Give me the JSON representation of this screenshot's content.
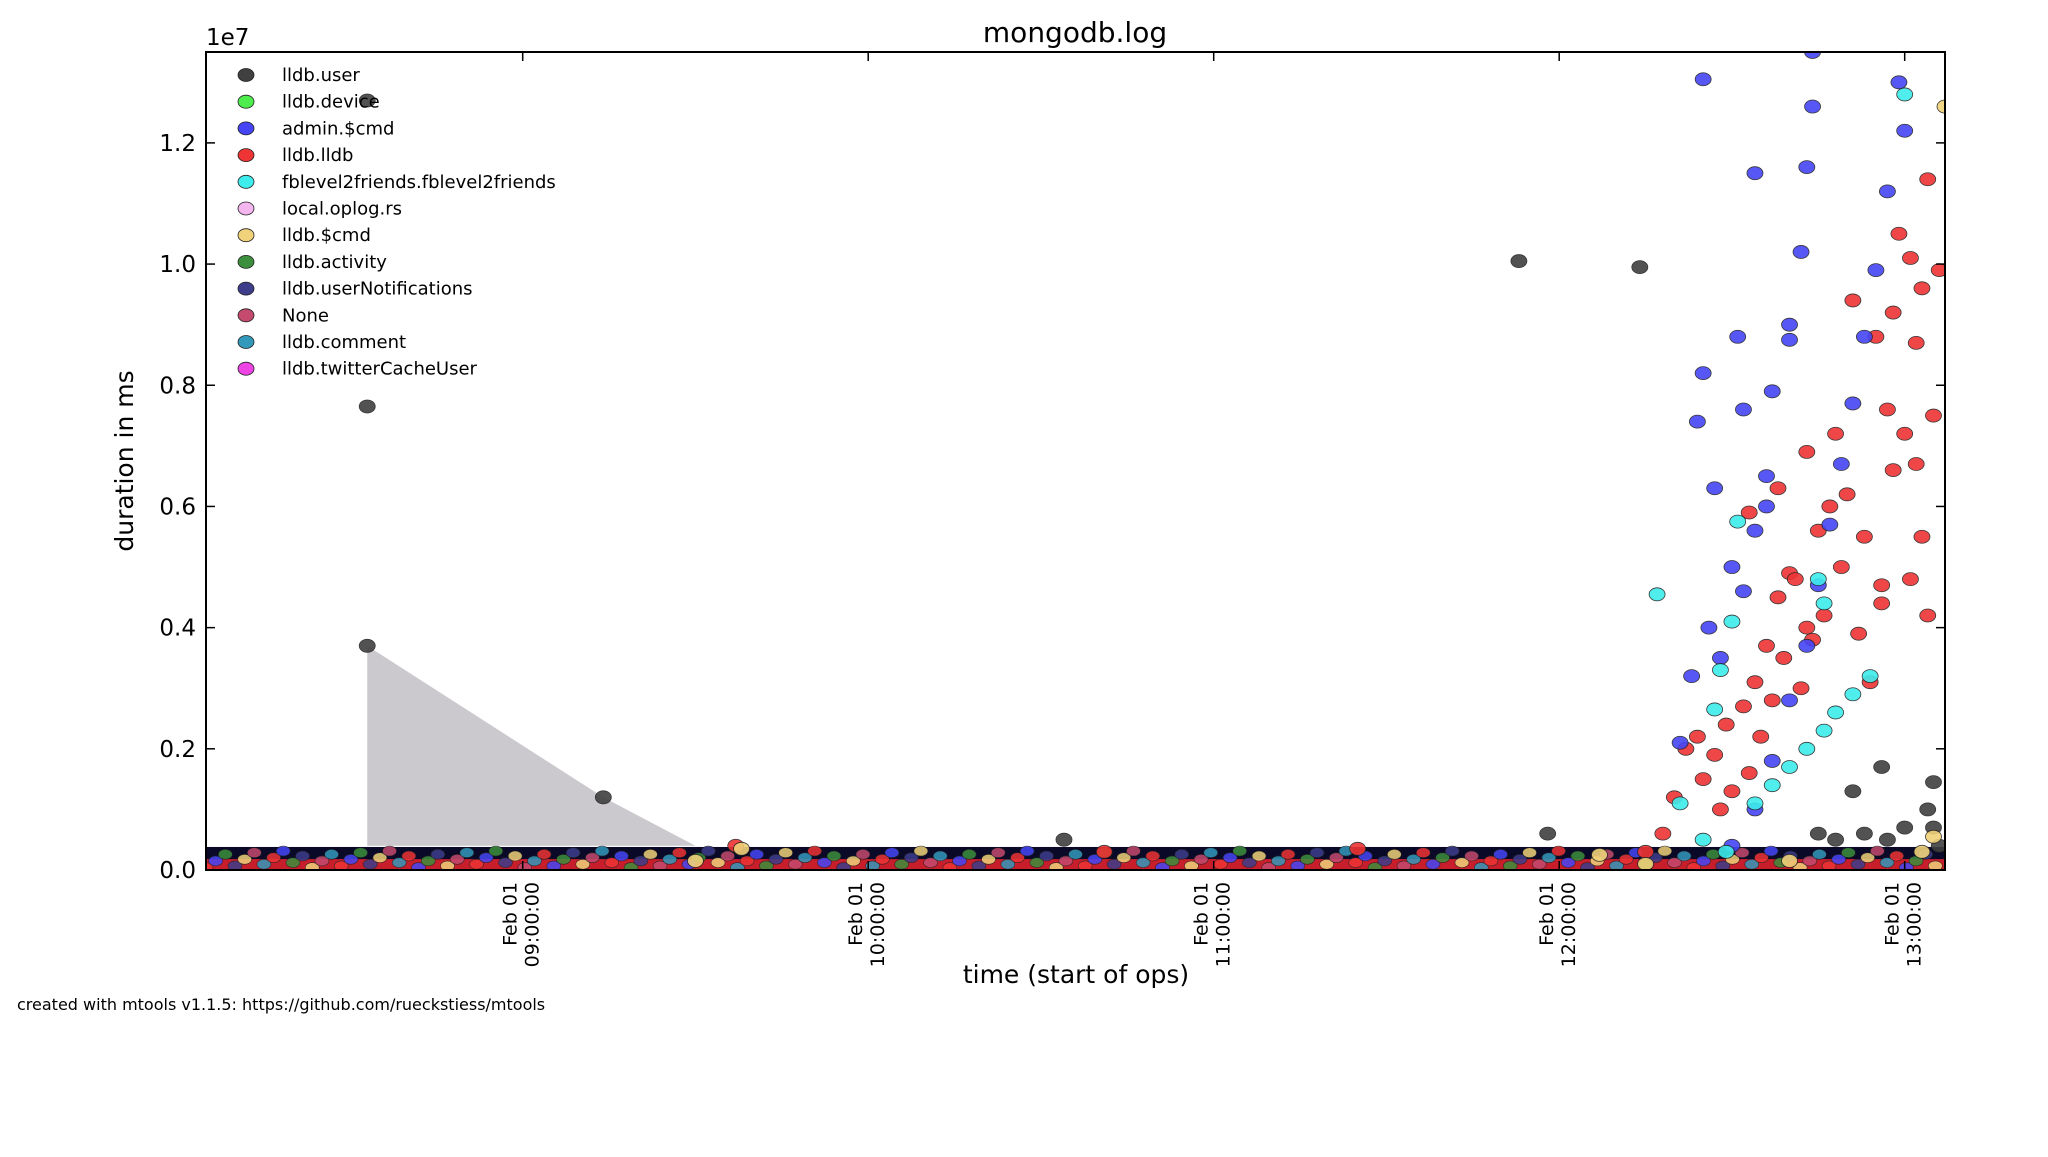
{
  "chart_data": {
    "type": "scatter",
    "title": "mongodb.log",
    "xlabel": "time (start of ops)",
    "ylabel": "duration in ms",
    "y_multiplier_label": "1e7",
    "ylim": [
      0,
      1.35
    ],
    "y_ticks": [
      "0.0",
      "0.2",
      "0.4",
      "0.6",
      "0.8",
      "1.0",
      "1.2"
    ],
    "y_tick_values": [
      0,
      0.2,
      0.4,
      0.6,
      0.8,
      1.0,
      1.2
    ],
    "xlim": [
      "Feb 01 08:05:00",
      "Feb 01 13:07:00"
    ],
    "x_ticks": [
      {
        "value": "09:00",
        "line1": "Feb 01",
        "line2": "09:00:00"
      },
      {
        "value": "10:00",
        "line1": "Feb 01",
        "line2": "10:00:00"
      },
      {
        "value": "11:00",
        "line1": "Feb 01",
        "line2": "11:00:00"
      },
      {
        "value": "12:00",
        "line1": "Feb 01",
        "line2": "12:00:00"
      },
      {
        "value": "13:00",
        "line1": "Feb 01",
        "line2": "13:00:00"
      }
    ],
    "legend_position": "top-left",
    "grid": false,
    "series": [
      {
        "name": "lldb.user",
        "color": "#404040"
      },
      {
        "name": "lldb.device",
        "color": "#4ded4d"
      },
      {
        "name": "admin.$cmd",
        "color": "#4545f5"
      },
      {
        "name": "lldb.lldb",
        "color": "#ee3434"
      },
      {
        "name": "fblevel2friends.fblevel2friends",
        "color": "#3eecec"
      },
      {
        "name": "local.oplog.rs",
        "color": "#f5b5ee"
      },
      {
        "name": "lldb.$cmd",
        "color": "#f0d27a"
      },
      {
        "name": "lldb.activity",
        "color": "#3c8f3c"
      },
      {
        "name": "lldb.userNotifications",
        "color": "#3d3d8c"
      },
      {
        "name": "None",
        "color": "#c44a6e"
      },
      {
        "name": "lldb.comment",
        "color": "#3399bb"
      },
      {
        "name": "lldb.twitterCacheUser",
        "color": "#ee44e6"
      }
    ],
    "points": {
      "lldb.user": [
        [
          "08:33",
          1.27
        ],
        [
          "08:33",
          0.765
        ],
        [
          "08:33",
          0.37
        ],
        [
          "09:14",
          0.12
        ],
        [
          "10:34",
          0.05
        ],
        [
          "11:53",
          1.005
        ],
        [
          "12:14",
          0.995
        ],
        [
          "11:58",
          0.06
        ],
        [
          "12:56",
          0.17
        ],
        [
          "13:05",
          0.145
        ],
        [
          "12:51",
          0.13
        ],
        [
          "13:04",
          0.1
        ],
        [
          "12:45",
          0.06
        ],
        [
          "12:53",
          0.06
        ],
        [
          "13:00",
          0.07
        ],
        [
          "13:05",
          0.07
        ],
        [
          "12:48",
          0.05
        ],
        [
          "12:57",
          0.05
        ],
        [
          "13:06",
          0.04
        ]
      ],
      "admin.$cmd": [
        [
          "12:25",
          1.305
        ],
        [
          "12:34",
          1.15
        ],
        [
          "12:44",
          1.35
        ],
        [
          "12:44",
          1.26
        ],
        [
          "12:43",
          1.16
        ],
        [
          "12:42",
          1.02
        ],
        [
          "12:31",
          0.88
        ],
        [
          "12:25",
          0.82
        ],
        [
          "12:24",
          0.74
        ],
        [
          "12:27",
          0.63
        ],
        [
          "12:32",
          0.76
        ],
        [
          "12:37",
          0.79
        ],
        [
          "12:36",
          0.65
        ],
        [
          "12:34",
          0.56
        ],
        [
          "12:30",
          0.5
        ],
        [
          "12:28",
          0.35
        ],
        [
          "12:23",
          0.32
        ],
        [
          "12:21",
          0.21
        ],
        [
          "12:36",
          0.6
        ],
        [
          "12:32",
          0.46
        ],
        [
          "12:26",
          0.4
        ],
        [
          "12:40",
          0.9
        ],
        [
          "12:40",
          0.875
        ],
        [
          "12:59",
          1.3
        ],
        [
          "13:00",
          1.22
        ],
        [
          "12:57",
          1.12
        ],
        [
          "12:55",
          0.99
        ],
        [
          "12:53",
          0.88
        ],
        [
          "12:51",
          0.77
        ],
        [
          "12:49",
          0.67
        ],
        [
          "12:47",
          0.57
        ],
        [
          "12:45",
          0.47
        ],
        [
          "12:43",
          0.37
        ],
        [
          "12:40",
          0.28
        ],
        [
          "12:37",
          0.18
        ],
        [
          "12:34",
          0.1
        ],
        [
          "12:30",
          0.04
        ]
      ],
      "lldb.lldb": [
        [
          "09:37",
          0.04
        ],
        [
          "10:41",
          0.03
        ],
        [
          "11:25",
          0.035
        ],
        [
          "12:33",
          0.59
        ],
        [
          "12:38",
          0.63
        ],
        [
          "12:43",
          0.69
        ],
        [
          "12:40",
          0.49
        ],
        [
          "12:45",
          0.56
        ],
        [
          "12:51",
          0.94
        ],
        [
          "12:55",
          0.88
        ],
        [
          "12:58",
          0.92
        ],
        [
          "13:02",
          0.87
        ],
        [
          "13:03",
          0.96
        ],
        [
          "13:04",
          1.14
        ],
        [
          "13:06",
          0.99
        ],
        [
          "13:01",
          1.01
        ],
        [
          "12:59",
          1.05
        ],
        [
          "12:57",
          0.76
        ],
        [
          "13:02",
          0.67
        ],
        [
          "13:05",
          0.75
        ],
        [
          "13:03",
          0.55
        ],
        [
          "13:01",
          0.48
        ],
        [
          "13:04",
          0.42
        ],
        [
          "12:56",
          0.47
        ],
        [
          "12:53",
          0.55
        ],
        [
          "12:50",
          0.62
        ],
        [
          "12:48",
          0.72
        ],
        [
          "12:46",
          0.42
        ],
        [
          "12:44",
          0.38
        ],
        [
          "12:42",
          0.3
        ],
        [
          "12:39",
          0.35
        ],
        [
          "12:37",
          0.28
        ],
        [
          "12:35",
          0.22
        ],
        [
          "12:33",
          0.16
        ],
        [
          "12:30",
          0.13
        ],
        [
          "12:28",
          0.1
        ],
        [
          "12:25",
          0.15
        ],
        [
          "12:22",
          0.2
        ],
        [
          "12:20",
          0.12
        ],
        [
          "12:18",
          0.06
        ],
        [
          "12:15",
          0.03
        ],
        [
          "12:47",
          0.6
        ],
        [
          "12:49",
          0.5
        ],
        [
          "12:52",
          0.39
        ],
        [
          "12:54",
          0.31
        ],
        [
          "12:56",
          0.44
        ],
        [
          "12:58",
          0.66
        ],
        [
          "13:00",
          0.72
        ],
        [
          "12:41",
          0.48
        ],
        [
          "12:43",
          0.4
        ],
        [
          "12:38",
          0.45
        ],
        [
          "12:36",
          0.37
        ],
        [
          "12:34",
          0.31
        ],
        [
          "12:32",
          0.27
        ],
        [
          "12:29",
          0.24
        ],
        [
          "12:27",
          0.19
        ],
        [
          "12:24",
          0.22
        ]
      ],
      "fblevel2friends.fblevel2friends": [
        [
          "12:17",
          0.455
        ],
        [
          "12:31",
          0.575
        ],
        [
          "12:30",
          0.41
        ],
        [
          "12:28",
          0.33
        ],
        [
          "12:27",
          0.265
        ],
        [
          "12:45",
          0.48
        ],
        [
          "12:46",
          0.44
        ],
        [
          "13:00",
          1.28
        ],
        [
          "12:21",
          0.11
        ],
        [
          "12:25",
          0.05
        ],
        [
          "12:29",
          0.03
        ],
        [
          "12:34",
          0.11
        ],
        [
          "12:37",
          0.14
        ],
        [
          "12:40",
          0.17
        ],
        [
          "12:43",
          0.2
        ],
        [
          "12:46",
          0.23
        ],
        [
          "12:48",
          0.26
        ],
        [
          "12:51",
          0.29
        ],
        [
          "12:54",
          0.32
        ]
      ],
      "lldb.$cmd": [
        [
          "09:30",
          0.015
        ],
        [
          "09:38",
          0.035
        ],
        [
          "12:07",
          0.025
        ],
        [
          "13:05",
          0.055
        ],
        [
          "13:07",
          1.26
        ],
        [
          "12:15",
          0.01
        ],
        [
          "12:40",
          0.015
        ],
        [
          "13:03",
          0.03
        ]
      ]
    }
  }
}
